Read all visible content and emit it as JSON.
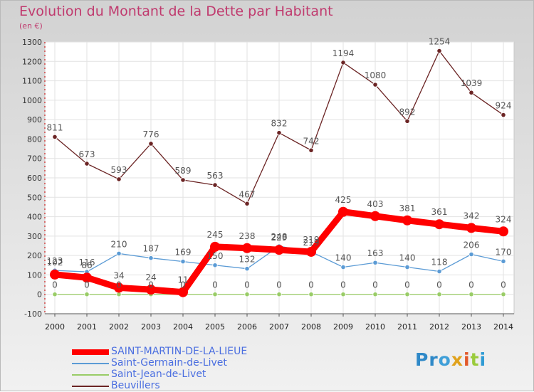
{
  "title": "Evolution du Montant de la Dette par Habitant",
  "unit_label": "(en €)",
  "logo": {
    "text": "Proxiti",
    "parts": [
      "Pr",
      "o",
      "x",
      "i",
      "t",
      "i"
    ]
  },
  "chart_data": {
    "type": "line",
    "title": "Evolution du Montant de la Dette par Habitant",
    "ylabel": "(en €)",
    "ylim": [
      -100,
      1300
    ],
    "yticks": [
      -100,
      0,
      100,
      200,
      300,
      400,
      500,
      600,
      700,
      800,
      900,
      1000,
      1100,
      1200,
      1300
    ],
    "x": [
      "2000",
      "2001",
      "2002",
      "2003",
      "2004",
      "2005",
      "2006",
      "2007",
      "2008",
      "2009",
      "2010",
      "2011",
      "2012",
      "2013",
      "2014"
    ],
    "grid": true,
    "legend_position": "bottom-left",
    "series": [
      {
        "name": "SAINT-MARTIN-DE-LA-LIEUE",
        "color": "#ff0000",
        "emphasis": true,
        "values": [
          102,
          86,
          34,
          24,
          11,
          245,
          238,
          229,
          219,
          425,
          403,
          381,
          361,
          342,
          324
        ]
      },
      {
        "name": "Saint-Germain-de-Livet",
        "color": "#5b9bd5",
        "values": [
          123,
          116,
          210,
          187,
          169,
          150,
          132,
          248,
          219,
          140,
          163,
          140,
          118,
          206,
          170
        ]
      },
      {
        "name": "Saint-Jean-de-Livet",
        "color": "#99cc66",
        "values": [
          0,
          0,
          0,
          0,
          0,
          0,
          0,
          0,
          0,
          0,
          0,
          0,
          0,
          0,
          0
        ]
      },
      {
        "name": "Beuvillers",
        "color": "#6b2424",
        "values": [
          811,
          673,
          593,
          776,
          589,
          563,
          467,
          832,
          742,
          1194,
          1080,
          892,
          1254,
          1039,
          924
        ]
      }
    ]
  }
}
